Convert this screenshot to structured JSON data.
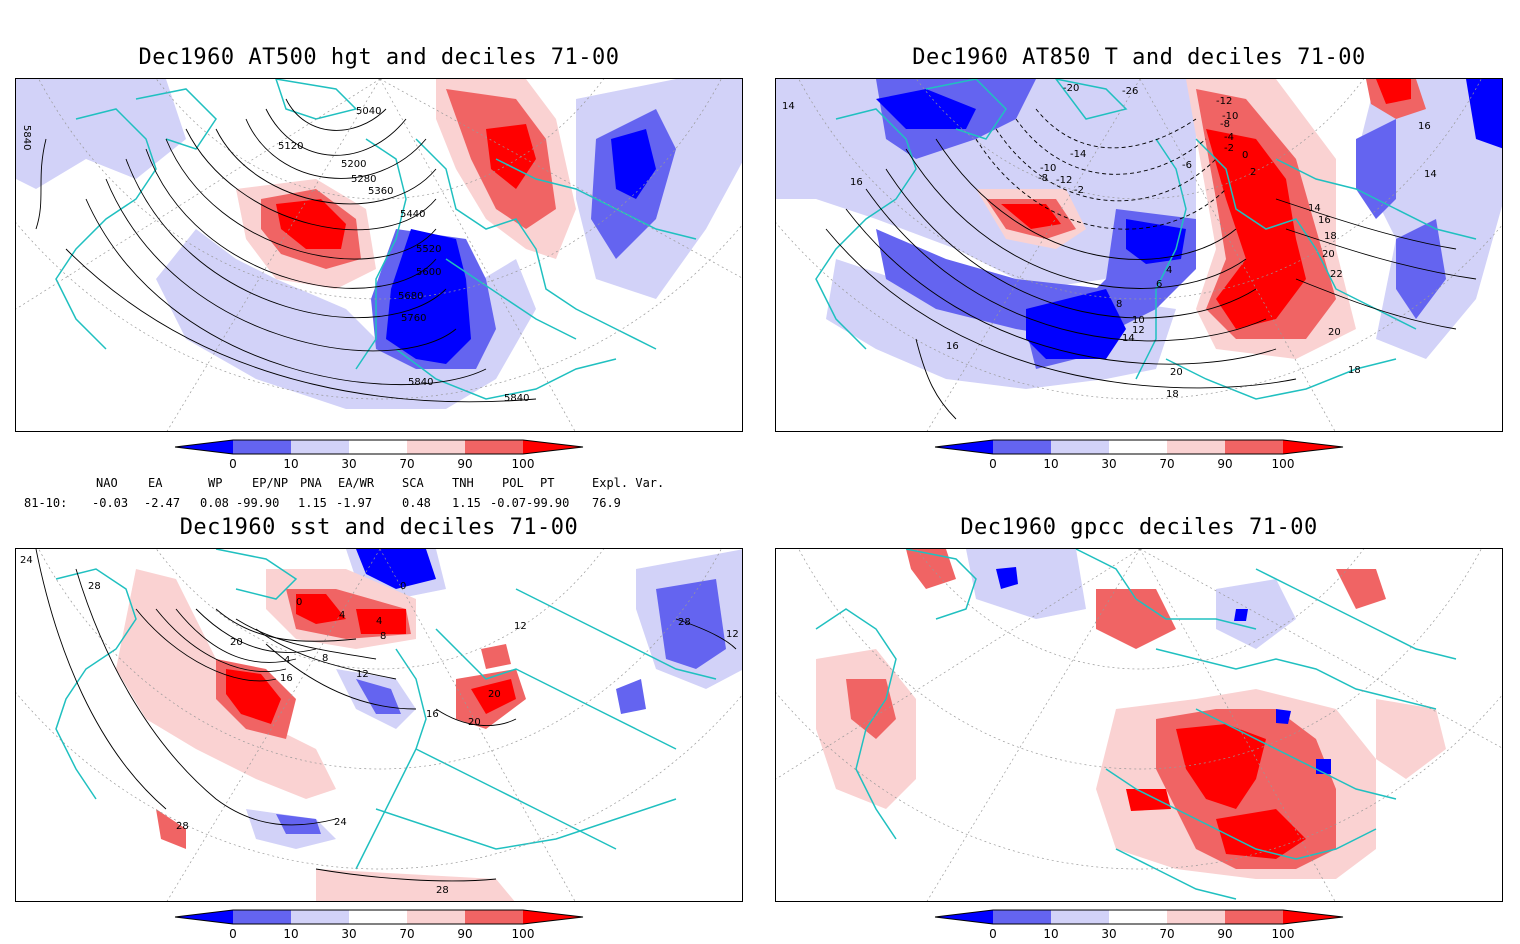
{
  "colors": {
    "very_low": "#0000ff",
    "low": "#6464f0",
    "below": "#d2d2f8",
    "above": "#fad2d2",
    "high": "#f06464",
    "very_high": "#ff0000",
    "coast": "#20c0c0"
  },
  "colorbar": {
    "ticks": [
      "0",
      "10",
      "30",
      "70",
      "90",
      "100"
    ]
  },
  "panels": [
    {
      "title": "Dec1960 AT500 hgt and deciles 71-00",
      "contour_labels": [
        "5040",
        "5120",
        "5200",
        "5280",
        "5360",
        "5440",
        "5520",
        "5600",
        "5680",
        "5760",
        "5840",
        "5840",
        "5840"
      ]
    },
    {
      "title": "Dec1960 AT850 T and deciles 71-00",
      "contour_labels": [
        "-20",
        "-26",
        "-12",
        "-10",
        "-8",
        "-4",
        "-2",
        "0",
        "-6",
        "-10",
        "-12",
        "-14",
        "-8",
        "-2",
        "2",
        "14",
        "16",
        "18",
        "20",
        "22",
        "4",
        "6",
        "8",
        "10",
        "12",
        "14",
        "20",
        "18",
        "16",
        "14",
        "16",
        "16",
        "18",
        "20",
        "14"
      ]
    },
    {
      "title": "Dec1960 sst and deciles 71-00",
      "contour_labels": [
        "24",
        "28",
        "0",
        "0",
        "4",
        "4",
        "8",
        "12",
        "4",
        "8",
        "20",
        "16",
        "12",
        "16",
        "20",
        "20",
        "24",
        "28",
        "28",
        "28",
        "12"
      ]
    },
    {
      "title": "Dec1960 gpcc deciles 71-00",
      "contour_labels": []
    }
  ],
  "indices": {
    "headers": [
      "NAO",
      "EA",
      "WP",
      "EP/NP",
      "PNA",
      "EA/WR",
      "SCA",
      "TNH",
      "POL",
      "PT",
      "Expl. Var."
    ],
    "row_label": "81-10:",
    "values": [
      "-0.03",
      "-2.47",
      "0.08",
      "-99.90",
      "1.15",
      "-1.97",
      "0.48",
      "1.15",
      "-0.07",
      "-99.90",
      "76.9"
    ]
  }
}
